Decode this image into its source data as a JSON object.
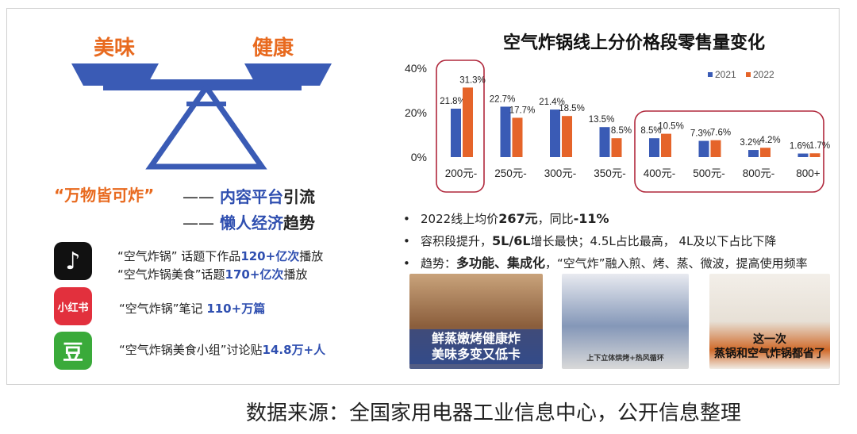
{
  "left": {
    "keyword_left": "美味",
    "keyword_right": "健康",
    "slogan": "“万物皆可炸”",
    "lines": [
      {
        "dash": "——",
        "a": "内容平台",
        "b": "引流"
      },
      {
        "dash": "——",
        "a": "懒人经济",
        "b": "趋势"
      }
    ],
    "apps": [
      {
        "icon": "tiktok-icon",
        "glyph": "♪",
        "color": "#111111"
      },
      {
        "icon": "xiaohongshu-icon",
        "glyph": "小红书",
        "color": "#e2303d"
      },
      {
        "icon": "douban-icon",
        "glyph": "豆",
        "color": "#3aaa3a"
      }
    ],
    "stats": [
      {
        "pre": "“空气炸锅” 话题下作品",
        "num": "120+亿次",
        "post": "播放"
      },
      {
        "pre": "“空气炸锅美食”话题",
        "num": "170+亿次",
        "post": "播放"
      },
      {
        "pre": "“空气炸锅”笔记 ",
        "num": "110+万篇",
        "post": ""
      },
      {
        "pre": "“空气炸锅美食小组”讨论贴",
        "num": "14.8万+人",
        "post": ""
      }
    ]
  },
  "chart_data": {
    "type": "bar",
    "title": "空气炸锅线上分价格段零售量变化",
    "categories": [
      "200元-",
      "250元-",
      "300元-",
      "350元-",
      "400元-",
      "500元-",
      "800元-",
      "800+"
    ],
    "series": [
      {
        "name": "2021",
        "values": [
          21.8,
          22.7,
          21.4,
          13.5,
          8.5,
          7.3,
          3.2,
          1.6
        ],
        "labels": [
          "21.8%",
          "22.7%",
          "21.4%",
          "13.5%",
          "8.5%",
          "7.3%",
          "3.2%",
          "1.6%"
        ],
        "color": "#3a5bb5"
      },
      {
        "name": "2022",
        "values": [
          31.3,
          17.7,
          18.5,
          8.5,
          10.5,
          7.6,
          4.2,
          1.7
        ],
        "labels": [
          "31.3%",
          "17.7%",
          "18.5%",
          "8.5%",
          "10.5%",
          "7.6%",
          "4.2%",
          "1.7%"
        ],
        "color": "#e5642a"
      }
    ],
    "yticks": [
      "40%",
      "20%",
      "0%"
    ],
    "ylim": [
      0,
      40
    ],
    "legend": "top-right",
    "highlight_color": "#b0283c"
  },
  "bullets": [
    {
      "pre": "2022线上均价",
      "b1": "267元",
      "mid": "，同比",
      "b2": "-11%",
      "post": ""
    },
    {
      "pre": "容积段提升，",
      "b1": "5L/6L",
      "mid": "增长最快；4.5L占比最高， 4L及以下占比下降",
      "b2": "",
      "post": ""
    },
    {
      "pre": "趋势：",
      "b1": "多功能、集成化",
      "mid": "，“空气炸”融入煎、烤、蒸、微波，提高使用频率",
      "b2": "",
      "post": ""
    }
  ],
  "photos": [
    {
      "caption_line1": "鲜蒸嫩烤健康炸",
      "caption_line2": "美味多变又低卡"
    },
    {
      "caption_line1": "上下立体烘烤+热风循环"
    },
    {
      "caption_line1": "这一次",
      "caption_line2": "蒸锅和空气炸锅都省了"
    }
  ],
  "source": "数据来源：全国家用电器工业信息中心，公开信息整理"
}
